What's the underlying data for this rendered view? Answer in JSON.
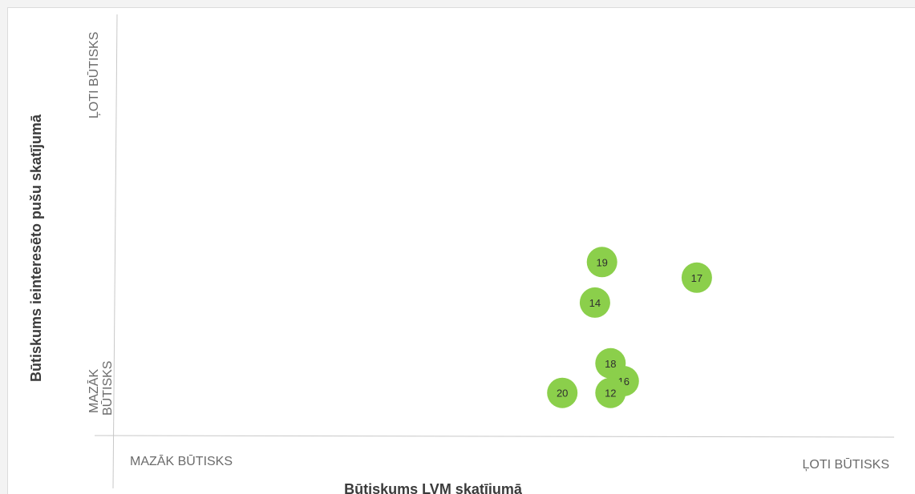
{
  "chart_data": {
    "type": "scatter",
    "xlabel": "Būtiskums LVM skatījumā",
    "ylabel": "Būtiskums ieinteresēto pušu skatījumā",
    "x_tick_labels": {
      "low": "MAZĀK BŪTISKS",
      "high": "ĻOTI BŪTISKS"
    },
    "y_tick_labels": {
      "low_line1": "MAZĀK",
      "low_line2": "BŪTISKS",
      "high": "ĻOTI BŪTISKS"
    },
    "xlim": [
      0,
      100
    ],
    "ylim": [
      0,
      100
    ],
    "grid": false,
    "marker_color": "#8bcf4b",
    "points": [
      {
        "label": "19",
        "x": 62.4,
        "y": 41.3
      },
      {
        "label": "17",
        "x": 74.6,
        "y": 37.6
      },
      {
        "label": "14",
        "x": 61.5,
        "y": 31.7
      },
      {
        "label": "18",
        "x": 63.5,
        "y": 17.3
      },
      {
        "label": "16",
        "x": 65.2,
        "y": 13.1
      },
      {
        "label": "20",
        "x": 57.3,
        "y": 10.3
      },
      {
        "label": "12",
        "x": 63.5,
        "y": 10.3
      }
    ]
  }
}
